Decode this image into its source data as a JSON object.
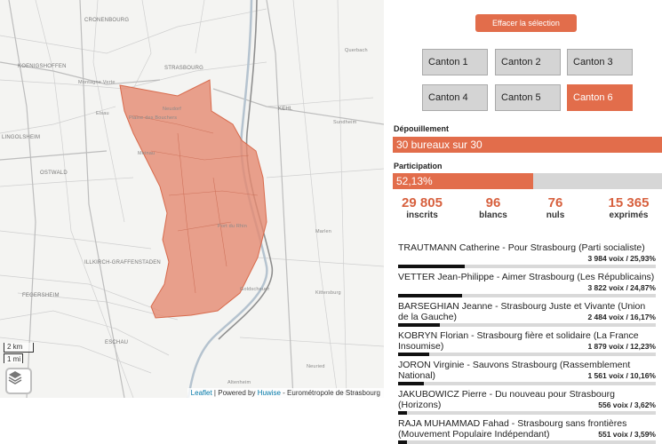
{
  "map": {
    "labels": [
      {
        "text": "Cronenbourg",
        "cls": ""
      },
      {
        "text": "Koenigshoffen",
        "cls": ""
      },
      {
        "text": "Montagne Verte",
        "cls": "small"
      },
      {
        "text": "Elsau",
        "cls": "small"
      },
      {
        "text": "STRASBOURG",
        "cls": ""
      },
      {
        "text": "Neudorf",
        "cls": "small"
      },
      {
        "text": "Plaine des Bouchers",
        "cls": "small"
      },
      {
        "text": "Meinau",
        "cls": "small"
      },
      {
        "text": "Port du Rhin",
        "cls": "small"
      },
      {
        "text": "KEHL",
        "cls": ""
      },
      {
        "text": "Querbach",
        "cls": "small"
      },
      {
        "text": "Sundheim",
        "cls": "small"
      },
      {
        "text": "LINGOLSHEIM",
        "cls": ""
      },
      {
        "text": "OSTWALD",
        "cls": ""
      },
      {
        "text": "ILLKIRCH-GRAFFENSTADEN",
        "cls": ""
      },
      {
        "text": "Marlen",
        "cls": "small"
      },
      {
        "text": "Goldscheuer",
        "cls": "small"
      },
      {
        "text": "Kittersburg",
        "cls": "small"
      },
      {
        "text": "FEGERSHEIM",
        "cls": ""
      },
      {
        "text": "ESCHAU",
        "cls": ""
      },
      {
        "text": "Altenheim",
        "cls": "small"
      },
      {
        "text": "Ichenheim",
        "cls": "small"
      },
      {
        "text": "Neuried",
        "cls": "small"
      }
    ],
    "scale_km": "2 km",
    "scale_mi": "1 mi",
    "layers_icon": "layers-icon",
    "attribution": {
      "leaflet": "Leaflet",
      "powered": " | Powered by ",
      "huwise": "Huwise",
      "rest": " - Eurométropole de Strasbourg"
    },
    "district_color": "#e58a70"
  },
  "panel": {
    "clear_label": "Effacer la sélection",
    "cantons": [
      "Canton 1",
      "Canton 2",
      "Canton 3",
      "Canton 4",
      "Canton 5",
      "Canton 6"
    ],
    "active_canton": 6,
    "depouillement": {
      "title": "Dépouillement",
      "text": "30 bureaux sur 30",
      "fraction": 1.0
    },
    "participation": {
      "title": "Participation",
      "text": "52,13%",
      "fraction": 0.5213
    },
    "stats": [
      {
        "num": "29 805",
        "lbl": "inscrits"
      },
      {
        "num": "96",
        "lbl": "blancs"
      },
      {
        "num": "76",
        "lbl": "nuls"
      },
      {
        "num": "15 365",
        "lbl": "exprimés"
      }
    ],
    "candidates": [
      {
        "name": "TRAUTMANN Catherine - Pour Strasbourg (Parti socialiste)",
        "votes": "3 984 voix / 25,93%",
        "pct": 25.93
      },
      {
        "name": "VETTER Jean-Philippe - Aimer Strasbourg (Les Républicains)",
        "votes": "3 822 voix / 24,87%",
        "pct": 24.87
      },
      {
        "name": "BARSEGHIAN Jeanne - Strasbourg Juste et Vivante (Union de la Gauche)",
        "votes": "2 484 voix / 16,17%",
        "pct": 16.17
      },
      {
        "name": "KOBRYN Florian - Strasbourg fière et solidaire (La France Insoumise)",
        "votes": "1 879 voix / 12,23%",
        "pct": 12.23
      },
      {
        "name": "JORON Virginie - Sauvons Strasbourg (Rassemblement National)",
        "votes": "1 561 voix / 10,16%",
        "pct": 10.16
      },
      {
        "name": "JAKUBOWICZ Pierre - Du nouveau pour Strasbourg (Horizons)",
        "votes": "556 voix / 3,62%",
        "pct": 3.62
      },
      {
        "name": "RAJA MUHAMMAD Fahad - Strasbourg sans frontières (Mouvement Populaire Indépendant)",
        "votes": "551 voix / 3,59%",
        "pct": 3.59
      }
    ],
    "accent_color": "#e26d4b"
  }
}
